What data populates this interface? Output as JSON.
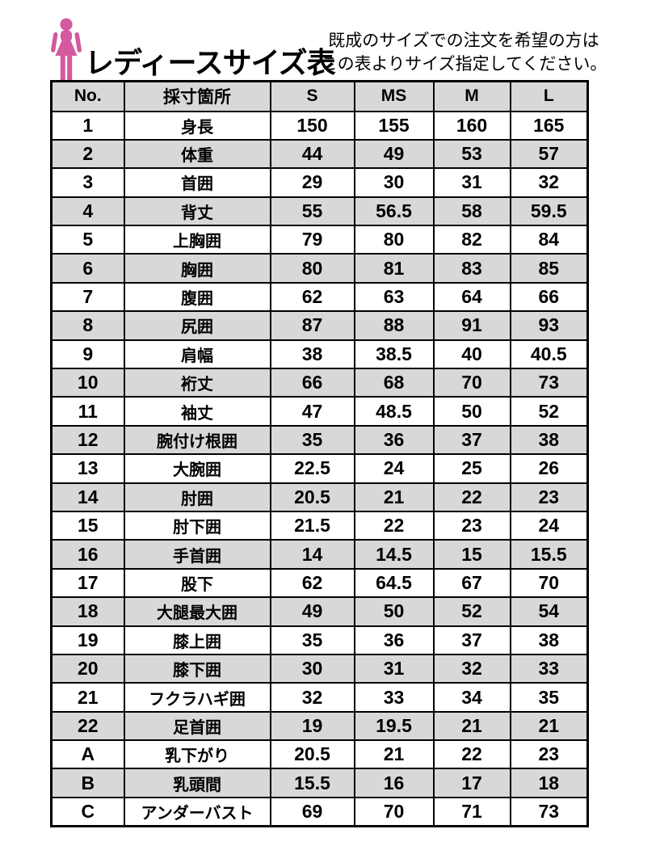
{
  "header": {
    "title": "レディースサイズ表",
    "note_line1": "既成のサイズでの注文を希望の方は",
    "note_line2": "この表よりサイズ指定してください。",
    "icon": "female-silhouette-icon"
  },
  "table": {
    "columns": [
      "No.",
      "採寸箇所",
      "S",
      "MS",
      "M",
      "L"
    ],
    "rows": [
      [
        "1",
        "身長",
        "150",
        "155",
        "160",
        "165"
      ],
      [
        "2",
        "体重",
        "44",
        "49",
        "53",
        "57"
      ],
      [
        "3",
        "首囲",
        "29",
        "30",
        "31",
        "32"
      ],
      [
        "4",
        "背丈",
        "55",
        "56.5",
        "58",
        "59.5"
      ],
      [
        "5",
        "上胸囲",
        "79",
        "80",
        "82",
        "84"
      ],
      [
        "6",
        "胸囲",
        "80",
        "81",
        "83",
        "85"
      ],
      [
        "7",
        "腹囲",
        "62",
        "63",
        "64",
        "66"
      ],
      [
        "8",
        "尻囲",
        "87",
        "88",
        "91",
        "93"
      ],
      [
        "9",
        "肩幅",
        "38",
        "38.5",
        "40",
        "40.5"
      ],
      [
        "10",
        "裄丈",
        "66",
        "68",
        "70",
        "73"
      ],
      [
        "11",
        "袖丈",
        "47",
        "48.5",
        "50",
        "52"
      ],
      [
        "12",
        "腕付け根囲",
        "35",
        "36",
        "37",
        "38"
      ],
      [
        "13",
        "大腕囲",
        "22.5",
        "24",
        "25",
        "26"
      ],
      [
        "14",
        "肘囲",
        "20.5",
        "21",
        "22",
        "23"
      ],
      [
        "15",
        "肘下囲",
        "21.5",
        "22",
        "23",
        "24"
      ],
      [
        "16",
        "手首囲",
        "14",
        "14.5",
        "15",
        "15.5"
      ],
      [
        "17",
        "股下",
        "62",
        "64.5",
        "67",
        "70"
      ],
      [
        "18",
        "大腿最大囲",
        "49",
        "50",
        "52",
        "54"
      ],
      [
        "19",
        "膝上囲",
        "35",
        "36",
        "37",
        "38"
      ],
      [
        "20",
        "膝下囲",
        "30",
        "31",
        "32",
        "33"
      ],
      [
        "21",
        "フクラハギ囲",
        "32",
        "33",
        "34",
        "35"
      ],
      [
        "22",
        "足首囲",
        "19",
        "19.5",
        "21",
        "21"
      ],
      [
        "A",
        "乳下がり",
        "20.5",
        "21",
        "22",
        "23"
      ],
      [
        "B",
        "乳頭間",
        "15.5",
        "16",
        "17",
        "18"
      ],
      [
        "C",
        "アンダーバスト",
        "69",
        "70",
        "71",
        "73"
      ]
    ]
  },
  "colors": {
    "accent_pink": "#d4599e",
    "stripe_gray": "#d8d8d8",
    "border_black": "#000000"
  }
}
